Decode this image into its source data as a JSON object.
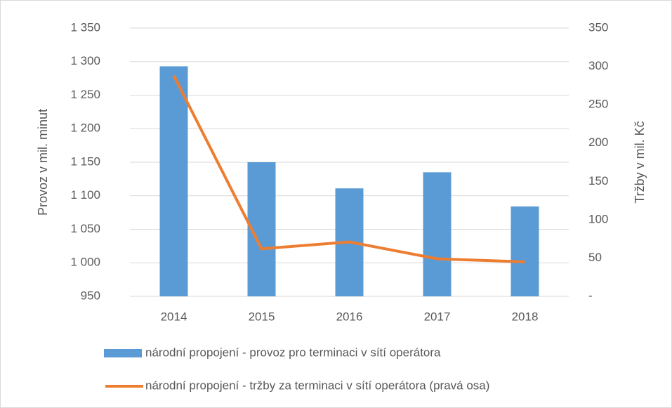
{
  "chart_data": {
    "type": "bar",
    "categories": [
      "2014",
      "2015",
      "2016",
      "2017",
      "2018"
    ],
    "series": [
      {
        "name": "národní propojení - provoz pro terminaci v sítí operátora",
        "type": "bar",
        "color": "#5b9bd5",
        "values": [
          1293,
          1150,
          1111,
          1135,
          1084
        ]
      },
      {
        "name": "národní propojení - tržby za terminaci v sítí operátora (pravá osa)",
        "type": "line",
        "axis": "y2",
        "color": "#ed7d31",
        "values": [
          288,
          62,
          71,
          49,
          45
        ]
      }
    ],
    "ylabel": "Provoz v mil. minut",
    "y2label": "Tržby v mil. Kč",
    "ylim": [
      950,
      1350
    ],
    "yticks": [
      950,
      {
        "value": 1000,
        "label": "1 000"
      },
      {
        "value": 1050,
        "label": "1 050"
      },
      {
        "value": 1100,
        "label": "1 100"
      },
      {
        "value": 1150,
        "label": "1 150"
      },
      {
        "value": 1200,
        "label": "1 200"
      },
      {
        "value": 1250,
        "label": "1 250"
      },
      {
        "value": 1300,
        "label": "1 300"
      },
      {
        "value": 1350,
        "label": "1 350"
      }
    ],
    "y2lim": [
      0,
      350
    ],
    "y2ticks": [
      {
        "value": 0,
        "label": "-"
      },
      50,
      100,
      150,
      200,
      250,
      300,
      350
    ],
    "grid": true
  }
}
